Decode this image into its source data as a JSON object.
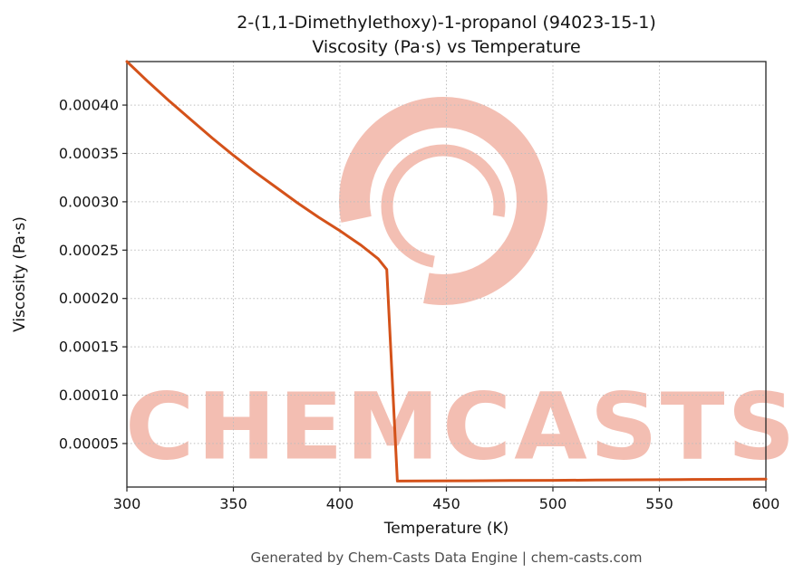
{
  "chart": {
    "title_line1": "2-(1,1-Dimethylethoxy)-1-propanol (94023-15-1)",
    "title_line2": "Viscosity (Pa·s) vs Temperature",
    "xlabel": "Temperature (K)",
    "ylabel": "Viscosity (Pa·s)"
  },
  "watermark": {
    "text": "CHEMCASTS",
    "color": "#e25f42"
  },
  "footer": {
    "text": "Generated by Chem-Casts Data Engine | chem-casts.com"
  },
  "chart_data": {
    "type": "line",
    "title": "2-(1,1-Dimethylethoxy)-1-propanol (94023-15-1)\nViscosity (Pa·s) vs Temperature",
    "xlabel": "Temperature (K)",
    "ylabel": "Viscosity (Pa·s)",
    "xlim": [
      300,
      600
    ],
    "ylim": [
      5e-06,
      0.000445
    ],
    "grid": true,
    "grid_style": "dotted",
    "grid_color": "#bdbdbd",
    "x_ticks": [
      300,
      350,
      400,
      450,
      500,
      550,
      600
    ],
    "x_tick_labels": [
      "300",
      "350",
      "400",
      "450",
      "500",
      "550",
      "600"
    ],
    "y_ticks": [
      5e-05,
      0.0001,
      0.00015,
      0.0002,
      0.00025,
      0.0003,
      0.00035,
      0.0004
    ],
    "y_tick_labels": [
      "0.00005",
      "0.00010",
      "0.00015",
      "0.00020",
      "0.00025",
      "0.00030",
      "0.00035",
      "0.00040"
    ],
    "series": [
      {
        "name": "viscosity",
        "color": "#d4521a",
        "line_width": 3,
        "x": [
          300,
          310,
          320,
          330,
          340,
          350,
          360,
          370,
          380,
          390,
          400,
          410,
          418,
          422,
          427,
          440,
          460,
          480,
          500,
          520,
          540,
          560,
          580,
          600
        ],
        "y": [
          0.000445,
          0.000424,
          0.000404,
          0.000385,
          0.000366,
          0.000348,
          0.000331,
          0.000315,
          0.000299,
          0.000284,
          0.00027,
          0.000255,
          0.000241,
          0.00023,
          1.12e-05,
          1.13e-05,
          1.15e-05,
          1.17e-05,
          1.19e-05,
          1.22e-05,
          1.25e-05,
          1.28e-05,
          1.3e-05,
          1.32e-05
        ]
      }
    ]
  }
}
